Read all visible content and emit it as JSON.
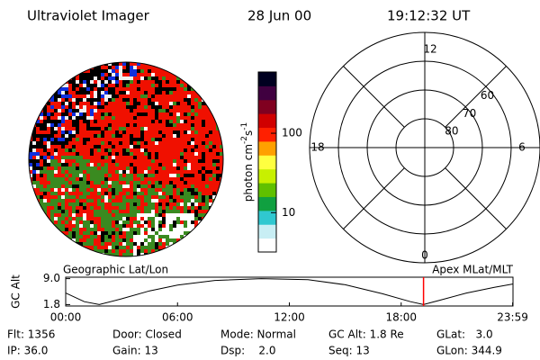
{
  "header": {
    "title": "Ultraviolet Imager",
    "date": "28 Jun 00",
    "time": "19:12:32 UT"
  },
  "colorbar": {
    "label": [
      "photon cm",
      "-2",
      "s",
      "-1"
    ],
    "log": true,
    "lim": [
      3.2,
      590
    ],
    "ticks": [
      10,
      100
    ],
    "colors": [
      "#ffffff",
      "#c8eef4",
      "#30c8d0",
      "#10a040",
      "#60c000",
      "#c8f000",
      "#ffff40",
      "#ffa000",
      "#ff2000",
      "#d00000",
      "#800020",
      "#400040",
      "#000020"
    ]
  },
  "polar": {
    "rlim": [
      90,
      50
    ],
    "rings": [
      80,
      70,
      60
    ],
    "labels": {
      "top": "12",
      "bottom": "0",
      "left": "18",
      "right": "6"
    }
  },
  "altitude": {
    "left_label": "Geographic Lat/Lon",
    "right_label": "Apex MLat/MLT",
    "ylabel": "GC Alt",
    "xlim": [
      0,
      24
    ],
    "xticks": [
      {
        "value": 0,
        "label": "00:00"
      },
      {
        "value": 6,
        "label": "06:00"
      },
      {
        "value": 12,
        "label": "12:00"
      },
      {
        "value": 18,
        "label": "18:00"
      },
      {
        "value": 23.98,
        "label": "23:59"
      }
    ],
    "ylim": [
      1.4,
      9.4
    ],
    "yticks": [
      {
        "value": 1.8,
        "label": "1.8"
      },
      {
        "value": 9.0,
        "label": "9.0"
      }
    ],
    "x": [
      0,
      1,
      1.8,
      3,
      4.5,
      6,
      8,
      10.5,
      13,
      15,
      17,
      18.5,
      19.2,
      20,
      21.5,
      23,
      23.98
    ],
    "values": [
      5.0,
      2.6,
      1.8,
      3.4,
      5.6,
      7.2,
      8.5,
      9.0,
      8.7,
      7.3,
      4.8,
      2.6,
      1.8,
      2.9,
      5.0,
      6.6,
      7.5
    ],
    "color": "#000000",
    "marker": 19.2,
    "marker_color": "#ff0000"
  },
  "info": {
    "rows": [
      [
        "Flt: 1356",
        "Door: Closed",
        "Mode: Normal",
        "GC Alt: 1.8 Re",
        "GLat:   3.0"
      ],
      [
        "IP: 36.0",
        "Gain: 13",
        "Dsp:    2.0",
        "Seq: 13",
        "GLon: 344.9"
      ]
    ]
  }
}
